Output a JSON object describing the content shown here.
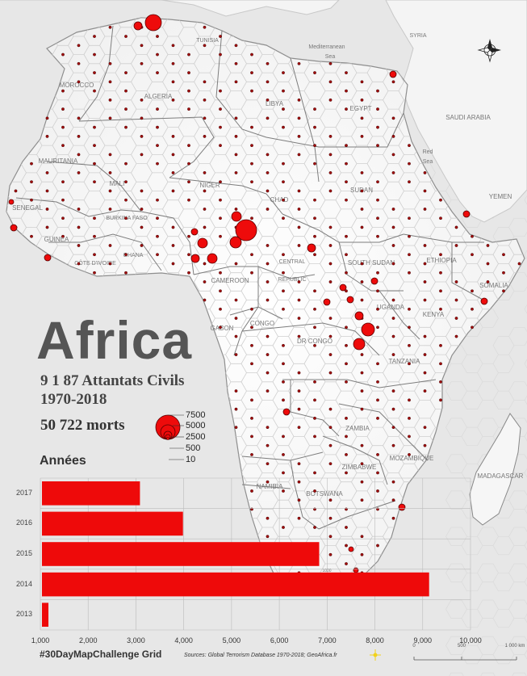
{
  "title": "Africa",
  "subtitle_attacks": "9 1 87  Attantats Civils",
  "subtitle_years": "1970-2018",
  "deaths": "50 722  morts",
  "legend": {
    "values": [
      "7500",
      "5000",
      "2500",
      "500",
      "10"
    ]
  },
  "annees_label": "Années",
  "hashtag": "#30DayMapChallenge Grid",
  "sources": "Sources: Global Terrorism Database 1970-2018; GeoAfrica.fr",
  "scalebar": {
    "labels": [
      "0",
      "500",
      "1 000 km"
    ]
  },
  "map_labels": [
    {
      "text": "SYRIA"
    },
    {
      "text": "Mediterranean"
    },
    {
      "text": "Sea"
    },
    {
      "text": "TUNISIA"
    },
    {
      "text": "MOROCCO"
    },
    {
      "text": "ALGERIA"
    },
    {
      "text": "LIBYA"
    },
    {
      "text": "EGYPT"
    },
    {
      "text": "SAUDI ARABIA"
    },
    {
      "text": "Red"
    },
    {
      "text": "Sea"
    },
    {
      "text": "YEMEN"
    },
    {
      "text": "MAURITANIA"
    },
    {
      "text": "MALI"
    },
    {
      "text": "NIGER"
    },
    {
      "text": "CHAD"
    },
    {
      "text": "SUDAN"
    },
    {
      "text": "SENEGAL"
    },
    {
      "text": "BURKINA FASO"
    },
    {
      "text": "GUINEA"
    },
    {
      "text": "CÔTE D'IVOIRE"
    },
    {
      "text": "GHANA"
    },
    {
      "text": "CAMEROON"
    },
    {
      "text": "CENTRAL"
    },
    {
      "text": "REPUBLIC"
    },
    {
      "text": "SOUTH SUDAN"
    },
    {
      "text": "ETHIOPIA"
    },
    {
      "text": "SOMALIA"
    },
    {
      "text": "UGANDA"
    },
    {
      "text": "KENYA"
    },
    {
      "text": "GABON"
    },
    {
      "text": "CONGO"
    },
    {
      "text": "DR CONGO"
    },
    {
      "text": "TANZANIA"
    },
    {
      "text": "ZAMBIA"
    },
    {
      "text": "ZIMBABWE"
    },
    {
      "text": "MOZAMBIQUE"
    },
    {
      "text": "NAMIBIA"
    },
    {
      "text": "BOTSWANA"
    },
    {
      "text": "MADAGASCAR"
    },
    {
      "text": "1000"
    }
  ],
  "chart_data": {
    "type": "bar",
    "orientation": "horizontal",
    "title": "Années",
    "categories": [
      "2017",
      "2016",
      "2015",
      "2014",
      "2013"
    ],
    "values": [
      3050,
      3950,
      6800,
      9100,
      600
    ],
    "xlim": [
      1000,
      10000
    ],
    "xticks": [
      "1,000",
      "2,000",
      "3,000",
      "4,000",
      "5,000",
      "6,000",
      "7,000",
      "8,000",
      "9,000",
      "10,000"
    ],
    "bar_color": "#ee0a0a",
    "grid": true
  },
  "colors": {
    "sea": "#e8e8e8",
    "land": "#f7f7f7",
    "hex_stroke": "#cfcfcf",
    "border": "#8a8a8a",
    "dot": "#ee0b0b",
    "dot_stroke": "#5a0000"
  },
  "north_arrow_icon": "compass-rose-icon",
  "sun_icon": "sun-icon"
}
